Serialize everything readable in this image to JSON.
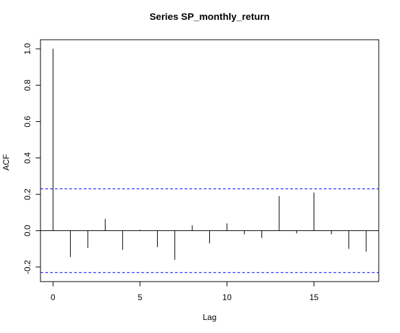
{
  "chart_data": {
    "type": "bar",
    "title": "Series  SP_monthly_return",
    "xlabel": "Lag",
    "ylabel": "ACF",
    "xlim": [
      -0.72,
      18.72
    ],
    "ylim": [
      -0.28,
      1.05
    ],
    "x_ticks": [
      0,
      5,
      10,
      15
    ],
    "x_tick_labels": [
      "0",
      "5",
      "10",
      "15"
    ],
    "y_ticks": [
      -0.2,
      0.0,
      0.2,
      0.4,
      0.6,
      0.8,
      1.0
    ],
    "y_tick_labels": [
      "-0.2",
      "0.0",
      "0.2",
      "0.4",
      "0.6",
      "0.8",
      "1.0"
    ],
    "lags": [
      0,
      1,
      2,
      3,
      4,
      5,
      6,
      7,
      8,
      9,
      10,
      11,
      12,
      13,
      14,
      15,
      16,
      17,
      18
    ],
    "acf": [
      1.0,
      -0.145,
      -0.095,
      0.065,
      -0.105,
      0.005,
      -0.09,
      -0.16,
      0.03,
      -0.07,
      0.04,
      -0.02,
      -0.04,
      0.19,
      -0.015,
      0.21,
      -0.02,
      -0.1,
      -0.115
    ],
    "confidence_bounds": [
      0.23,
      -0.23
    ],
    "bound_color": "#0000ff",
    "grid": false
  }
}
